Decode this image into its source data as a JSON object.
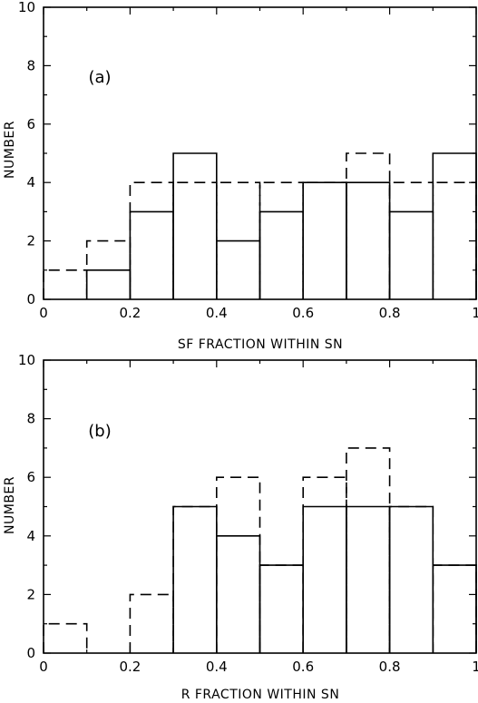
{
  "chart_data": [
    {
      "type": "bar",
      "panel_label": "(a)",
      "xlabel": "SF FRACTION WITHIN SN",
      "ylabel": "NUMBER",
      "xlim": [
        0,
        1
      ],
      "ylim": [
        0,
        10
      ],
      "xticks": [
        0,
        0.2,
        0.4,
        0.6,
        0.8,
        1
      ],
      "yticks": [
        0,
        2,
        4,
        6,
        8,
        10
      ],
      "xtick_labels": [
        "0",
        "0.2",
        "0.4",
        "0.6",
        "0.8",
        "1"
      ],
      "ytick_labels": [
        "0",
        "2",
        "4",
        "6",
        "8",
        "10"
      ],
      "bin_edges": [
        0,
        0.1,
        0.2,
        0.3,
        0.4,
        0.5,
        0.6,
        0.7,
        0.8,
        0.9,
        1.0
      ],
      "series": [
        {
          "style": "solid",
          "values": [
            0,
            1,
            3,
            5,
            2,
            3,
            4,
            4,
            3,
            5
          ]
        },
        {
          "style": "dashed",
          "values": [
            1,
            2,
            4,
            4,
            4,
            4,
            4,
            5,
            4,
            4
          ]
        }
      ],
      "grid": false
    },
    {
      "type": "bar",
      "panel_label": "(b)",
      "xlabel": "R FRACTION WITHIN SN",
      "ylabel": "NUMBER",
      "xlim": [
        0,
        1
      ],
      "ylim": [
        0,
        10
      ],
      "xticks": [
        0,
        0.2,
        0.4,
        0.6,
        0.8,
        1
      ],
      "yticks": [
        0,
        2,
        4,
        6,
        8,
        10
      ],
      "xtick_labels": [
        "0",
        "0.2",
        "0.4",
        "0.6",
        "0.8",
        "1"
      ],
      "ytick_labels": [
        "0",
        "2",
        "4",
        "6",
        "8",
        "10"
      ],
      "bin_edges": [
        0,
        0.1,
        0.2,
        0.3,
        0.4,
        0.5,
        0.6,
        0.7,
        0.8,
        0.9,
        1.0
      ],
      "series": [
        {
          "style": "solid",
          "values": [
            0,
            0,
            0,
            5,
            4,
            3,
            5,
            5,
            5,
            3
          ]
        },
        {
          "style": "dashed",
          "values": [
            1,
            0,
            2,
            5,
            6,
            3,
            6,
            7,
            5,
            3
          ]
        }
      ],
      "grid": false
    }
  ]
}
